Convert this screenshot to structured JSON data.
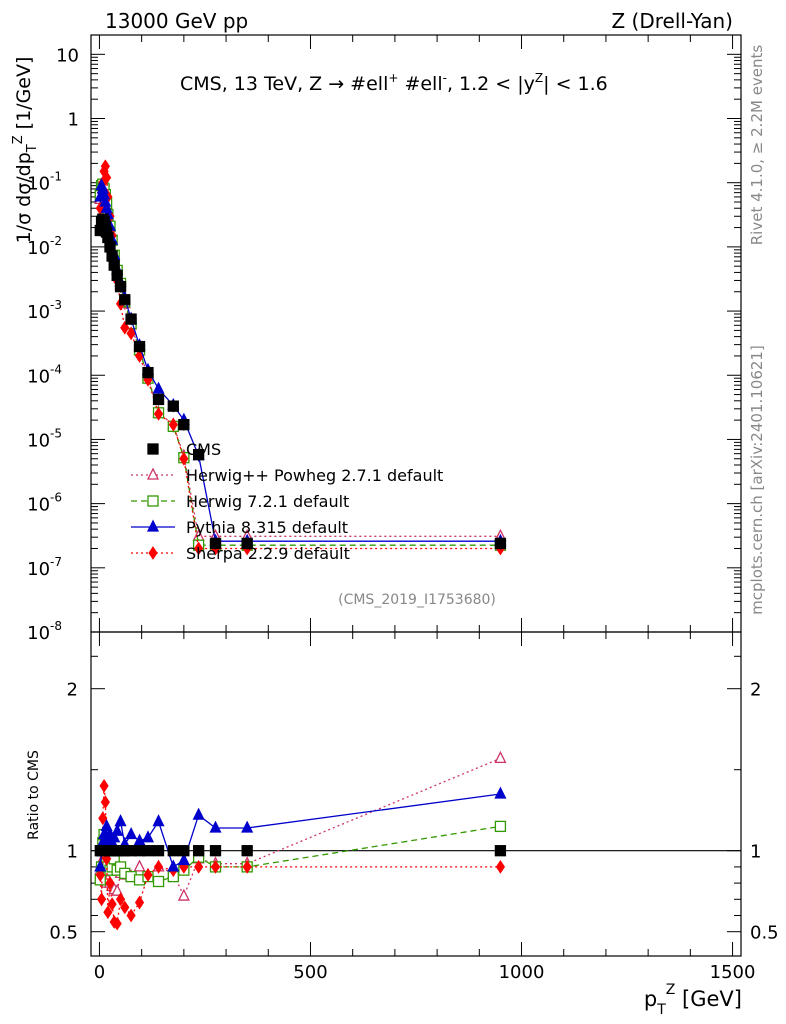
{
  "header": {
    "left_title": "13000 GeV pp",
    "right_title": "Z (Drell-Yan)"
  },
  "side": {
    "rivet": "Rivet 4.1.0, ≥ 2.2M events",
    "mcplots": "mcplots.cern.ch [arXiv:2401.10621]"
  },
  "chart_data": {
    "type": "line",
    "title_parts": {
      "a": "CMS, 13 TeV, Z →  #ell",
      "sup1": "+",
      "b": " #ell",
      "sup2": "-",
      "c": ", 1.2 < |y",
      "sup3": "Z",
      "d": "| < 1.6"
    },
    "analysis_id": "(CMS_2019_I1753680)",
    "xlabel": {
      "base": "p",
      "sub": "T",
      "sup": "Z",
      "unit": " [GeV]"
    },
    "ylabel_main": "1/σ dσ/dp_T^Z [1/GeV]",
    "ylabel_main_parts": {
      "a": "1/σ dσ/dp",
      "sub": "T",
      "sup": "Z",
      "b": " [1/GeV]"
    },
    "ylabel_ratio": "Ratio to CMS",
    "xlim": [
      -20,
      1520
    ],
    "main_ylim_log": [
      1e-08,
      20
    ],
    "ratio_ylim": [
      0.35,
      2.35
    ],
    "x_ticks": [
      0,
      500,
      1000,
      1500
    ],
    "main_y_ticks": [
      {
        "value": 10,
        "mant": "10",
        "exp": ""
      },
      {
        "value": 1,
        "mant": "1",
        "exp": ""
      },
      {
        "value": 0.1,
        "mant": "10",
        "exp": "-1"
      },
      {
        "value": 0.01,
        "mant": "10",
        "exp": "-2"
      },
      {
        "value": 0.001,
        "mant": "10",
        "exp": "-3"
      },
      {
        "value": 0.0001,
        "mant": "10",
        "exp": "-4"
      },
      {
        "value": 1e-05,
        "mant": "10",
        "exp": "-5"
      },
      {
        "value": 1e-06,
        "mant": "10",
        "exp": "-6"
      },
      {
        "value": 1e-07,
        "mant": "10",
        "exp": "-7"
      },
      {
        "value": 1e-08,
        "mant": "10",
        "exp": "-8"
      }
    ],
    "ratio_y_ticks": [
      0.5,
      1,
      2
    ],
    "x": [
      2,
      5,
      8,
      11,
      14,
      17,
      20,
      25,
      30,
      35,
      42,
      50,
      60,
      75,
      95,
      115,
      140,
      175,
      200,
      235,
      275,
      350,
      950
    ],
    "series": [
      {
        "name": "CMS",
        "color": "#000000",
        "marker": "square-filled",
        "line": "none",
        "values": [
          0.018,
          0.025,
          0.027,
          0.025,
          0.021,
          0.017,
          0.014,
          0.01,
          0.0072,
          0.0052,
          0.0036,
          0.0024,
          0.0015,
          0.00075,
          0.00028,
          0.00011,
          4.2e-05,
          3.3e-05,
          1.7e-05,
          5.8e-06,
          2.4e-07,
          2.4e-07,
          2.4e-07
        ],
        "ratio": [
          1,
          1,
          1,
          1,
          1,
          1,
          1,
          1,
          1,
          1,
          1,
          1,
          1,
          1,
          1,
          1,
          1,
          1,
          1,
          1,
          1,
          1,
          1
        ]
      },
      {
        "name": "Herwig++ Powheg 2.7.1 default",
        "color": "#cc3366",
        "marker": "triangle-open",
        "line": "dotted",
        "values": [
          0.055,
          0.08,
          0.085,
          0.075,
          0.06,
          0.045,
          0.03,
          0.02,
          0.0125,
          0.0073,
          0.0044,
          0.0025,
          0.0013,
          0.00061,
          0.00024,
          9.5e-05,
          2.6e-05,
          1.7e-05,
          5.5e-06,
          3.1e-07,
          3.1e-07,
          3.1e-07,
          3.1e-07
        ],
        "ratio": [
          0.88,
          0.92,
          0.95,
          0.9,
          0.85,
          0.8,
          0.82,
          0.8,
          0.78,
          0.76,
          0.75,
          0.86,
          0.85,
          0.84,
          0.9,
          0.85,
          0.9,
          0.86,
          0.72,
          0.95,
          0.92,
          0.92,
          1.57
        ]
      },
      {
        "name": "Herwig 7.2.1 default",
        "color": "#339900",
        "marker": "square-open",
        "line": "dashed",
        "values": [
          0.065,
          0.09,
          0.095,
          0.08,
          0.065,
          0.048,
          0.032,
          0.021,
          0.0127,
          0.0074,
          0.0043,
          0.0027,
          0.0014,
          0.00064,
          0.00025,
          9e-05,
          2.6e-05,
          1.6e-05,
          5.2e-06,
          2.25e-07,
          2.25e-07,
          2.25e-07,
          2.25e-07
        ],
        "ratio": [
          0.82,
          0.9,
          1.05,
          1.1,
          1.05,
          0.95,
          0.9,
          0.88,
          0.9,
          0.95,
          0.88,
          0.9,
          0.86,
          0.84,
          0.82,
          0.84,
          0.81,
          0.84,
          0.88,
          0.96,
          0.9,
          0.9,
          1.15
        ]
      },
      {
        "name": "Pythia 8.315 default",
        "color": "#0000cc",
        "marker": "triangle-filled",
        "line": "solid",
        "values": [
          0.06,
          0.09,
          0.08,
          0.065,
          0.05,
          0.04,
          0.032,
          0.021,
          0.0128,
          0.0075,
          0.0044,
          0.0028,
          0.0016,
          0.00075,
          0.00029,
          0.00012,
          6.1e-05,
          3.4e-05,
          2e-05,
          5.6e-06,
          2.6e-07,
          2.6e-07,
          2.6e-07
        ],
        "ratio": [
          0.9,
          1.0,
          1.05,
          1.1,
          1.08,
          1.15,
          1.05,
          1.1,
          1.05,
          1.08,
          1.12,
          1.18,
          1.04,
          1.1,
          1.06,
          1.08,
          1.18,
          0.9,
          0.94,
          1.22,
          1.14,
          1.14,
          1.35
        ]
      },
      {
        "name": "Sherpa 2.2.9 default",
        "color": "#ff0000",
        "marker": "diamond-filled",
        "line": "dotted",
        "values": [
          0.04,
          0.07,
          0.1,
          0.15,
          0.18,
          0.12,
          0.06,
          0.03,
          0.015,
          0.006,
          0.003,
          0.0013,
          0.00055,
          0.00045,
          0.0002,
          8.5e-05,
          2.5e-05,
          1.7e-05,
          5e-06,
          2e-07,
          2e-07,
          2e-07,
          2e-07
        ],
        "ratio": [
          0.85,
          0.7,
          1.2,
          1.4,
          1.3,
          0.95,
          0.62,
          0.8,
          0.67,
          0.56,
          0.55,
          0.7,
          0.65,
          0.6,
          0.68,
          0.85,
          0.9,
          0.88,
          0.9,
          0.9,
          0.9,
          0.9,
          0.9
        ]
      }
    ]
  }
}
